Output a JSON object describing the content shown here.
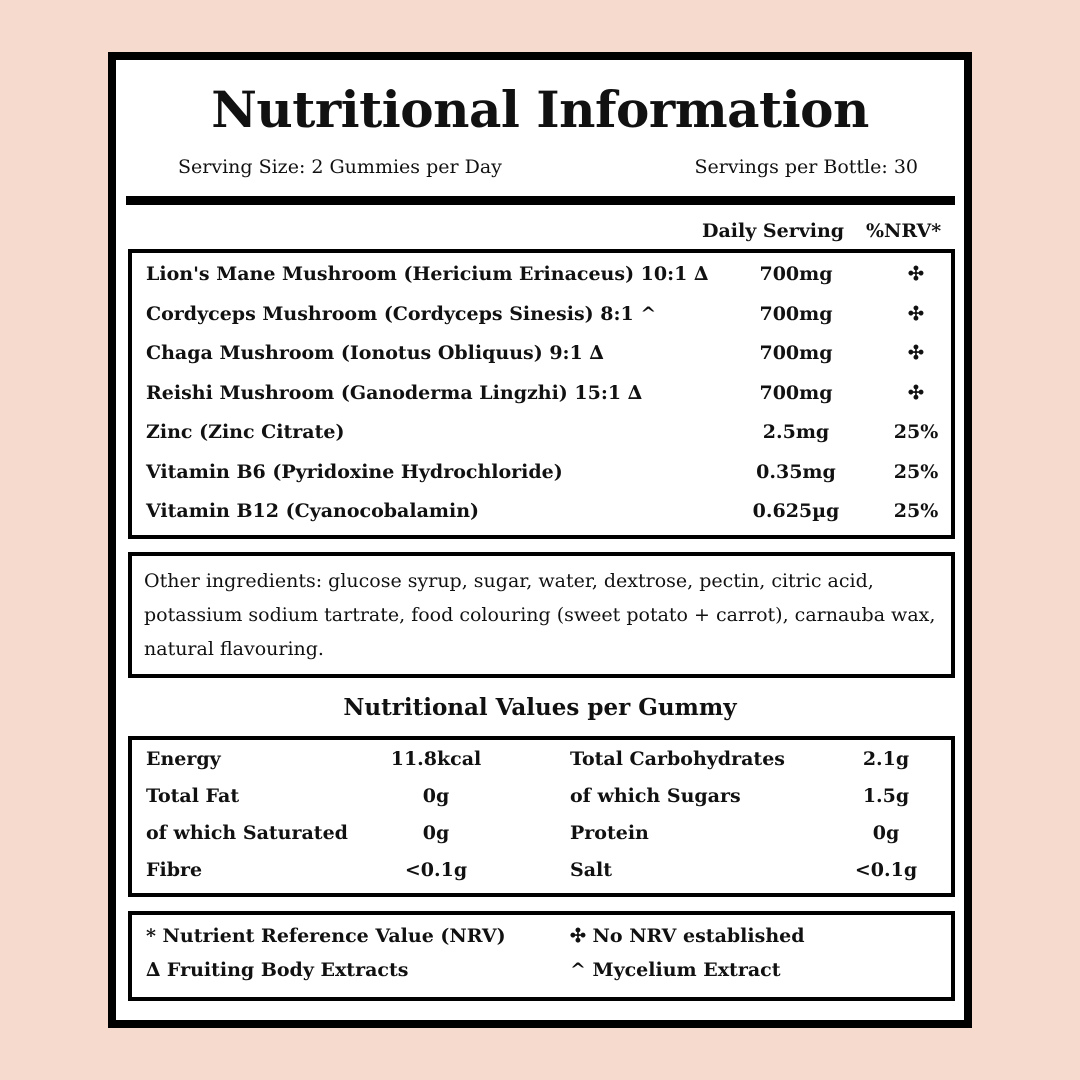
{
  "title": "Nutritional Information",
  "serving_size": "Serving Size: 2 Gummies per Day",
  "servings_per_bottle": "Servings per Bottle: 30",
  "columns": {
    "amount": "Daily Serving",
    "nrv": "%NRV*"
  },
  "ingredients": [
    {
      "name": "Lion's Mane Mushroom (Hericium Erinaceus) 10:1 ∆",
      "amount": "700mg",
      "nrv": "✣"
    },
    {
      "name": "Cordyceps Mushroom (Cordyceps Sinesis) 8:1 ^",
      "amount": "700mg",
      "nrv": "✣"
    },
    {
      "name": "Chaga Mushroom (Ionotus Obliquus) 9:1 ∆",
      "amount": "700mg",
      "nrv": "✣"
    },
    {
      "name": "Reishi Mushroom (Ganoderma Lingzhi) 15:1 ∆",
      "amount": "700mg",
      "nrv": "✣"
    },
    {
      "name": "Zinc (Zinc Citrate)",
      "amount": "2.5mg",
      "nrv": "25%"
    },
    {
      "name": "Vitamin B6 (Pyridoxine Hydrochloride)",
      "amount": "0.35mg",
      "nrv": "25%"
    },
    {
      "name": "Vitamin B12 (Cyanocobalamin)",
      "amount": "0.625µg",
      "nrv": "25%"
    }
  ],
  "other_ingredients": "Other ingredients: glucose syrup, sugar, water, dextrose, pectin, citric acid, potassium sodium tartrate, food colouring (sweet potato + carrot), carnauba wax, natural flavouring.",
  "values_title": "Nutritional Values per Gummy",
  "values": [
    {
      "l1": "Energy",
      "v1": "11.8kcal",
      "l2": "Total Carbohydrates",
      "v2": "2.1g"
    },
    {
      "l1": "Total Fat",
      "v1": "0g",
      "l2": "of which Sugars",
      "v2": "1.5g"
    },
    {
      "l1": "of which Saturated",
      "v1": "0g",
      "l2": "Protein",
      "v2": "0g"
    },
    {
      "l1": "Fibre",
      "v1": "<0.1g",
      "l2": "Salt",
      "v2": "<0.1g"
    }
  ],
  "footnotes": [
    {
      "left": "* Nutrient Reference Value (NRV)",
      "right": "✣ No NRV established"
    },
    {
      "left": "∆ Fruiting Body Extracts",
      "right": "^ Mycelium Extract"
    }
  ]
}
